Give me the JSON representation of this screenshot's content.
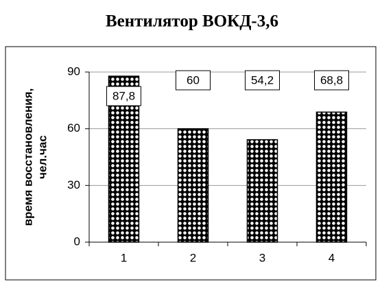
{
  "chart_data": {
    "type": "bar",
    "title": "Вентилятор ВОКД-3,6",
    "y_label": [
      "время восстановления,",
      "чел.час"
    ],
    "categories": [
      "1",
      "2",
      "3",
      "4"
    ],
    "values": [
      87.8,
      60,
      54.2,
      68.8
    ],
    "value_labels": [
      "87,8",
      "60",
      "54,2",
      "68,8"
    ],
    "color": "#000000",
    "ylim": [
      0,
      90
    ],
    "yticks": [
      0,
      30,
      60,
      90
    ],
    "grid": true
  }
}
